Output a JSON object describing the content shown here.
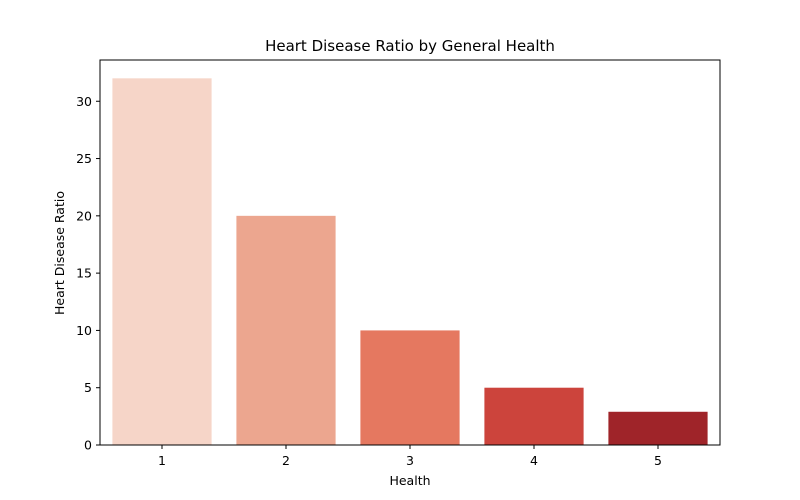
{
  "chart_data": {
    "type": "bar",
    "title": "Heart Disease Ratio by General Health",
    "xlabel": "Health",
    "ylabel": "Heart Disease Ratio",
    "categories": [
      "1",
      "2",
      "3",
      "4",
      "5"
    ],
    "values": [
      32.0,
      20.0,
      10.0,
      5.0,
      2.9
    ],
    "ylim": [
      0,
      33.6
    ],
    "yticks": [
      0,
      5,
      10,
      15,
      20,
      25,
      30
    ],
    "colors": [
      "#f6d5c8",
      "#eca68f",
      "#e57860",
      "#cc443c",
      "#9f2429"
    ],
    "grid": false,
    "legend": "none"
  }
}
